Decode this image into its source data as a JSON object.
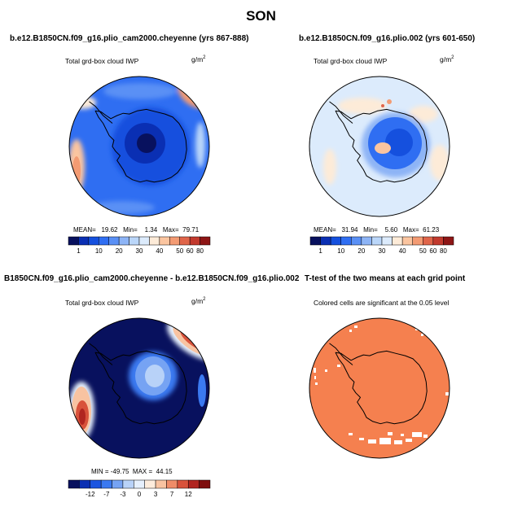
{
  "title": "SON",
  "panels": [
    {
      "title": "b.e12.B1850CN.f09_g16.plio_cam2000.cheyenne (yrs 867-888)",
      "subtitle": "Total grd-box cloud IWP",
      "units": "g/m",
      "units_sup": "2",
      "stats": [
        "MEAN=",
        "19.62",
        "Min=",
        "1.34",
        "Max=",
        "79.71"
      ],
      "cbar_labels": [
        "1",
        "10",
        "20",
        "30",
        "40",
        "50",
        "60",
        "80"
      ]
    },
    {
      "title": "b.e12.B1850CN.f09_g16.plio.002 (yrs 601-650)",
      "subtitle": "Total grd-box cloud IWP",
      "units": "g/m",
      "units_sup": "2",
      "stats": [
        "MEAN=",
        "31.94",
        "Min=",
        "5.60",
        "Max=",
        "61.23"
      ],
      "cbar_labels": [
        "1",
        "10",
        "20",
        "30",
        "40",
        "50",
        "60",
        "80"
      ]
    },
    {
      "title": "B1850CN.f09_g16.plio_cam2000.cheyenne - b.e12.B1850CN.f09_g16.plio.002",
      "subtitle": "Total grd-box cloud IWP",
      "units": "g/m",
      "units_sup": "2",
      "stats_line": "MIN = -49.75  MAX =  44.15",
      "cbar_labels": [
        "-12",
        "-7",
        "-3",
        "0",
        "3",
        "7",
        "12"
      ]
    },
    {
      "title": "T-test of the two means at each grid point",
      "subtitle": "Colored cells are significant at the 0.05 level"
    }
  ],
  "colors": {
    "seq": [
      "#08115e",
      "#0a2fb3",
      "#1550de",
      "#2f6ef2",
      "#5a90f5",
      "#8db4f6",
      "#bad6f9",
      "#dcebfc",
      "#fdebd8",
      "#fbc5a0",
      "#f39b73",
      "#e0654a",
      "#c23a2e",
      "#8e1616"
    ],
    "div": [
      "#08115e",
      "#0a2fb3",
      "#1b55e0",
      "#3b79f0",
      "#76a3f3",
      "#b8d2f8",
      "#e6f0fd",
      "#fdecdc",
      "#f8c3a1",
      "#ef8c68",
      "#d8523b",
      "#b02520",
      "#7e0d0d"
    ],
    "ttest": "#f5804f"
  },
  "chart_data": [
    {
      "type": "heatmap",
      "projection": "polar-stereographic-south",
      "title": "b.e12.B1850CN.f09_g16.plio_cam2000.cheyenne (yrs 867-888)",
      "variable": "Total grd-box cloud IWP",
      "units": "g/m^2",
      "summary": {
        "mean": 19.62,
        "min": 1.34,
        "max": 79.71
      },
      "colorbar_ticks": [
        1,
        10,
        20,
        30,
        40,
        50,
        60,
        80
      ]
    },
    {
      "type": "heatmap",
      "projection": "polar-stereographic-south",
      "title": "b.e12.B1850CN.f09_g16.plio.002 (yrs 601-650)",
      "variable": "Total grd-box cloud IWP",
      "units": "g/m^2",
      "summary": {
        "mean": 31.94,
        "min": 5.6,
        "max": 61.23
      },
      "colorbar_ticks": [
        1,
        10,
        20,
        30,
        40,
        50,
        60,
        80
      ]
    },
    {
      "type": "heatmap",
      "projection": "polar-stereographic-south",
      "title": "B1850CN.f09_g16.plio_cam2000.cheyenne - b.e12.B1850CN.f09_g16.plio.002",
      "variable": "Total grd-box cloud IWP",
      "units": "g/m^2",
      "summary": {
        "min": -49.75,
        "max": 44.15
      },
      "colorbar_ticks": [
        -12,
        -7,
        -3,
        0,
        3,
        7,
        12
      ]
    },
    {
      "type": "heatmap",
      "projection": "polar-stereographic-south",
      "title": "T-test of the two means at each grid point",
      "note": "Colored cells are significant at the 0.05 level"
    }
  ]
}
